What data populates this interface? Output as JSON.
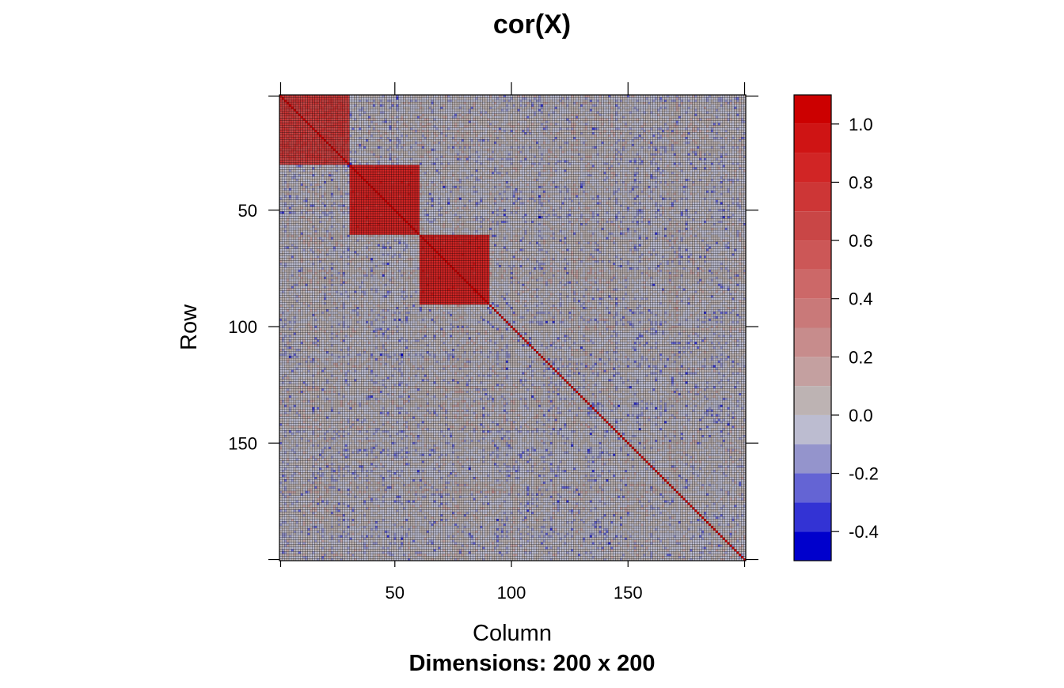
{
  "chart_data": {
    "type": "heatmap",
    "title": "cor(X)",
    "xlabel": "Column",
    "ylabel": "Row",
    "subtitle": "Dimensions: 200 x 200",
    "n_rows": 200,
    "n_cols": 200,
    "xlim": [
      1,
      200
    ],
    "ylim": [
      1,
      200
    ],
    "x_ticks": [
      50,
      100,
      150
    ],
    "y_ticks": [
      50,
      100,
      150
    ],
    "y_axis_reversed": true,
    "grid": true,
    "value_range": [
      -0.5,
      1.1
    ],
    "blocks": [
      {
        "rows": [
          1,
          30
        ],
        "cols": [
          1,
          30
        ],
        "value": 0.7
      },
      {
        "rows": [
          31,
          60
        ],
        "cols": [
          31,
          60
        ],
        "value": 0.85
      },
      {
        "rows": [
          61,
          90
        ],
        "cols": [
          61,
          90
        ],
        "value": 0.85
      }
    ],
    "diagonal_value": 1.0,
    "background_value_range": [
      -0.15,
      0.15
    ],
    "colorbar": {
      "placement": "right",
      "ticks": [
        1.0,
        0.8,
        0.6,
        0.4,
        0.2,
        0.0,
        -0.2,
        -0.4
      ],
      "tick_labels": [
        "1.0",
        "0.8",
        "0.6",
        "0.4",
        "0.2",
        "0.0",
        "-0.2",
        "-0.4"
      ],
      "bins": [
        {
          "from": 1.0,
          "to": 1.1,
          "color": "#cc0000"
        },
        {
          "from": 0.9,
          "to": 1.0,
          "color": "#cf1414"
        },
        {
          "from": 0.8,
          "to": 0.9,
          "color": "#d12525"
        },
        {
          "from": 0.7,
          "to": 0.8,
          "color": "#cd3636"
        },
        {
          "from": 0.6,
          "to": 0.7,
          "color": "#c94646"
        },
        {
          "from": 0.5,
          "to": 0.6,
          "color": "#cc5757"
        },
        {
          "from": 0.4,
          "to": 0.5,
          "color": "#cc6868"
        },
        {
          "from": 0.3,
          "to": 0.4,
          "color": "#c97979"
        },
        {
          "from": 0.2,
          "to": 0.3,
          "color": "#c78c8c"
        },
        {
          "from": 0.1,
          "to": 0.2,
          "color": "#c4a0a0"
        },
        {
          "from": 0.0,
          "to": 0.1,
          "color": "#bdb3b3"
        },
        {
          "from": -0.1,
          "to": 0.0,
          "color": "#bcbcd0"
        },
        {
          "from": -0.2,
          "to": -0.1,
          "color": "#9494cc"
        },
        {
          "from": -0.3,
          "to": -0.2,
          "color": "#6464d4"
        },
        {
          "from": -0.4,
          "to": -0.3,
          "color": "#3333d4"
        },
        {
          "from": -0.5,
          "to": -0.4,
          "color": "#0000cc"
        }
      ]
    }
  }
}
